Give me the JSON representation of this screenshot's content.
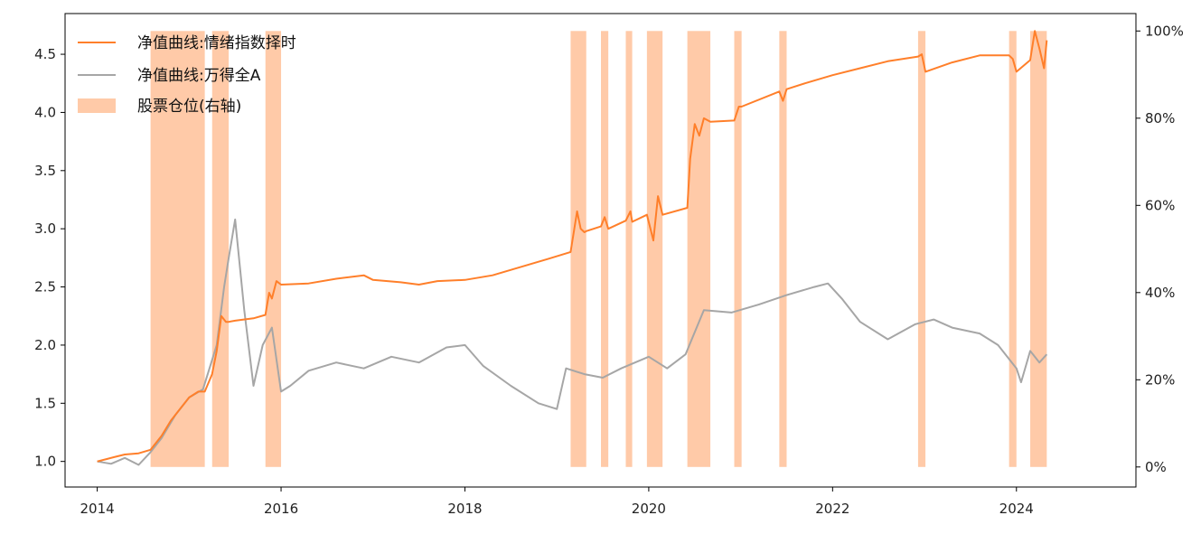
{
  "chart_data": {
    "type": "line",
    "x_range": [
      2013.65,
      2025.3
    ],
    "left_axis": {
      "ylim": [
        0.78,
        4.85
      ],
      "ticks": [
        1.0,
        1.5,
        2.0,
        2.5,
        3.0,
        3.5,
        4.0,
        4.5
      ],
      "tick_labels": [
        "1.0",
        "1.5",
        "2.0",
        "2.5",
        "3.0",
        "3.5",
        "4.0",
        "4.5"
      ]
    },
    "right_axis": {
      "ylim": [
        -0.046,
        1.04
      ],
      "ticks": [
        0,
        0.2,
        0.4,
        0.6,
        0.8,
        1.0
      ],
      "tick_labels": [
        "0%",
        "20%",
        "40%",
        "60%",
        "80%",
        "100%"
      ]
    },
    "x_ticks": [
      2014,
      2016,
      2018,
      2020,
      2022,
      2024
    ],
    "x_tick_labels": [
      "2014",
      "2016",
      "2018",
      "2020",
      "2022",
      "2024"
    ],
    "legend": {
      "placement": "top-left",
      "entries": [
        "净值曲线:情绪指数择时",
        "净值曲线:万得全A",
        "股票仓位(右轴)"
      ]
    },
    "colors": {
      "timing": "#ff7f2a",
      "wind": "#a6a6a6",
      "position": "#ffcaa8"
    },
    "position_intervals": [
      [
        2014.58,
        2015.17
      ],
      [
        2015.25,
        2015.43
      ],
      [
        2015.83,
        2016.0
      ],
      [
        2019.15,
        2019.32
      ],
      [
        2019.48,
        2019.56
      ],
      [
        2019.75,
        2019.82
      ],
      [
        2019.98,
        2020.15
      ],
      [
        2020.42,
        2020.67
      ],
      [
        2020.93,
        2021.01
      ],
      [
        2021.42,
        2021.5
      ],
      [
        2022.93,
        2023.01
      ],
      [
        2023.92,
        2024.0
      ],
      [
        2024.15,
        2024.33
      ]
    ],
    "series": [
      {
        "name": "净值曲线:情绪指数择时",
        "x": [
          2014.0,
          2014.1,
          2014.2,
          2014.3,
          2014.45,
          2014.58,
          2014.7,
          2014.8,
          2014.9,
          2015.0,
          2015.1,
          2015.17,
          2015.25,
          2015.3,
          2015.35,
          2015.4,
          2015.43,
          2015.5,
          2015.7,
          2015.83,
          2015.87,
          2015.9,
          2015.95,
          2016.0,
          2016.3,
          2016.6,
          2016.9,
          2017.0,
          2017.3,
          2017.5,
          2017.7,
          2018.0,
          2018.3,
          2018.6,
          2018.9,
          2019.15,
          2019.18,
          2019.22,
          2019.26,
          2019.3,
          2019.32,
          2019.48,
          2019.52,
          2019.56,
          2019.75,
          2019.8,
          2019.82,
          2019.98,
          2020.05,
          2020.1,
          2020.15,
          2020.42,
          2020.45,
          2020.5,
          2020.55,
          2020.6,
          2020.67,
          2020.93,
          2020.98,
          2021.01,
          2021.42,
          2021.46,
          2021.5,
          2021.7,
          2022.0,
          2022.3,
          2022.6,
          2022.93,
          2022.97,
          2023.01,
          2023.3,
          2023.6,
          2023.92,
          2023.96,
          2024.0,
          2024.15,
          2024.2,
          2024.25,
          2024.3,
          2024.33
        ],
        "values": [
          1.0,
          1.02,
          1.04,
          1.06,
          1.07,
          1.1,
          1.22,
          1.35,
          1.45,
          1.55,
          1.6,
          1.6,
          1.75,
          1.95,
          2.25,
          2.2,
          2.2,
          2.21,
          2.23,
          2.26,
          2.45,
          2.4,
          2.55,
          2.52,
          2.53,
          2.57,
          2.6,
          2.56,
          2.54,
          2.52,
          2.55,
          2.56,
          2.6,
          2.67,
          2.74,
          2.8,
          2.95,
          3.15,
          3.0,
          2.97,
          2.98,
          3.02,
          3.1,
          3.0,
          3.07,
          3.15,
          3.06,
          3.12,
          2.9,
          3.28,
          3.12,
          3.18,
          3.6,
          3.9,
          3.8,
          3.95,
          3.92,
          3.93,
          4.05,
          4.05,
          4.18,
          4.1,
          4.2,
          4.25,
          4.32,
          4.38,
          4.44,
          4.48,
          4.5,
          4.35,
          4.43,
          4.49,
          4.49,
          4.46,
          4.35,
          4.45,
          4.7,
          4.55,
          4.38,
          4.62
        ]
      },
      {
        "name": "净值曲线:万得全A",
        "x": [
          2014.0,
          2014.15,
          2014.3,
          2014.45,
          2014.58,
          2014.7,
          2014.85,
          2015.0,
          2015.15,
          2015.3,
          2015.38,
          2015.43,
          2015.5,
          2015.6,
          2015.7,
          2015.8,
          2015.9,
          2016.0,
          2016.1,
          2016.3,
          2016.6,
          2016.9,
          2017.2,
          2017.5,
          2017.8,
          2018.0,
          2018.2,
          2018.5,
          2018.8,
          2019.0,
          2019.1,
          2019.3,
          2019.5,
          2019.7,
          2020.0,
          2020.2,
          2020.4,
          2020.6,
          2020.9,
          2021.2,
          2021.5,
          2021.8,
          2021.95,
          2022.1,
          2022.3,
          2022.6,
          2022.9,
          2023.1,
          2023.3,
          2023.6,
          2023.8,
          2024.0,
          2024.05,
          2024.15,
          2024.25,
          2024.33
        ],
        "values": [
          1.0,
          0.98,
          1.03,
          0.97,
          1.08,
          1.2,
          1.4,
          1.55,
          1.62,
          2.0,
          2.5,
          2.75,
          3.08,
          2.3,
          1.65,
          2.0,
          2.15,
          1.6,
          1.65,
          1.78,
          1.85,
          1.8,
          1.9,
          1.85,
          1.98,
          2.0,
          1.82,
          1.65,
          1.5,
          1.45,
          1.8,
          1.75,
          1.72,
          1.8,
          1.9,
          1.8,
          1.92,
          2.3,
          2.28,
          2.35,
          2.43,
          2.5,
          2.53,
          2.4,
          2.2,
          2.05,
          2.18,
          2.22,
          2.15,
          2.1,
          2.0,
          1.8,
          1.68,
          1.95,
          1.85,
          1.92
        ]
      }
    ]
  }
}
